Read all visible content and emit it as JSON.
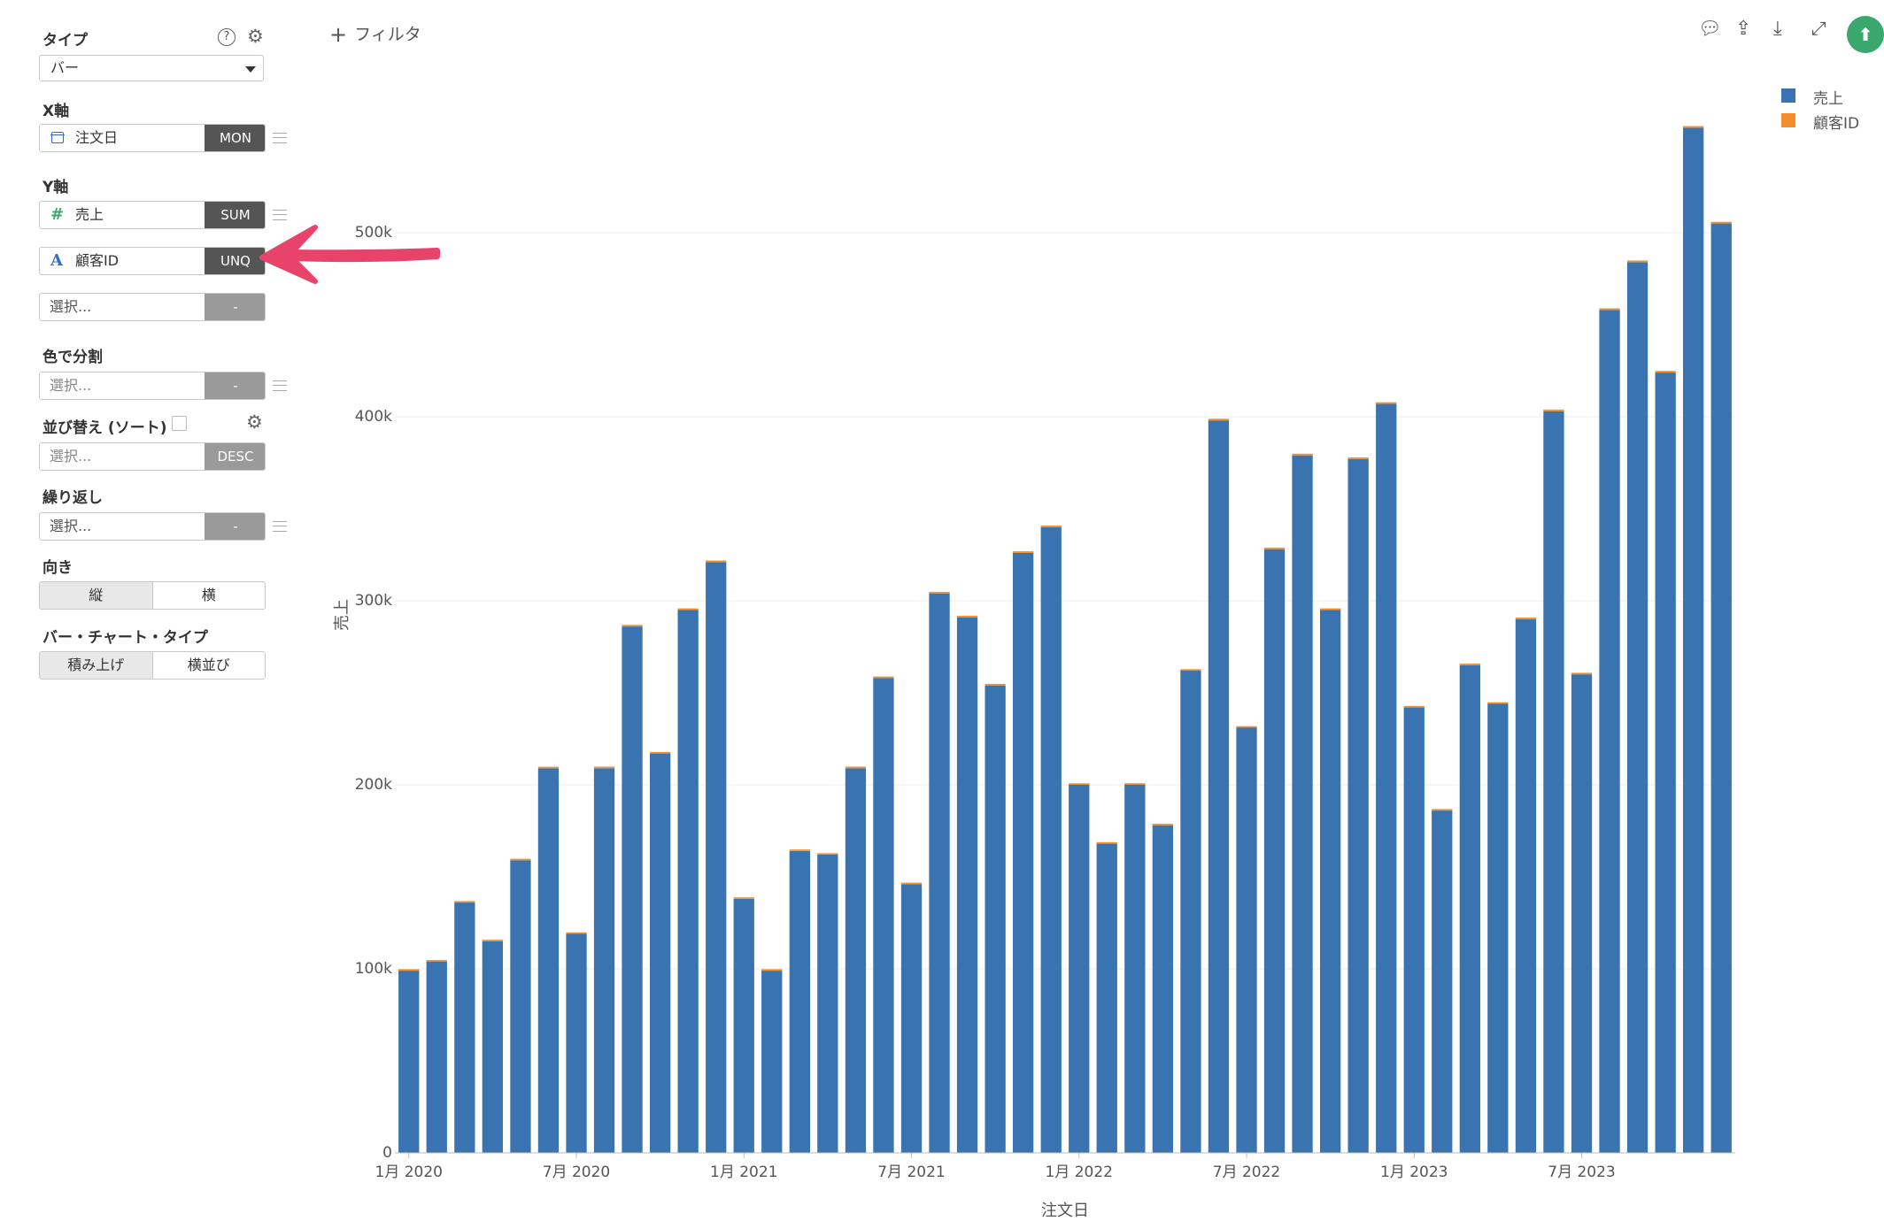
{
  "sidebar": {
    "type": {
      "label": "タイプ",
      "value": "バー"
    },
    "x_axis": {
      "label": "X軸",
      "field": "注文日",
      "agg": "MON"
    },
    "y_axis": {
      "label": "Y軸",
      "fields": [
        {
          "name": "売上",
          "agg": "SUM",
          "icon": "#"
        },
        {
          "name": "顧客ID",
          "agg": "UNQ",
          "icon": "A"
        }
      ],
      "placeholder": "選択...",
      "placeholder_agg": "-"
    },
    "color": {
      "label": "色で分割",
      "placeholder": "選択...",
      "agg": "-"
    },
    "sort": {
      "label": "並び替え (ソート)",
      "placeholder": "選択...",
      "agg": "DESC"
    },
    "repeat": {
      "label": "繰り返し",
      "placeholder": "選択...",
      "agg": "-"
    },
    "orientation": {
      "label": "向き",
      "options": [
        "縦",
        "横"
      ],
      "selected": 0
    },
    "bar_type": {
      "label": "バー・チャート・タイプ",
      "options": [
        "積み上げ",
        "横並び"
      ],
      "selected": 0
    }
  },
  "toolbar": {
    "filter_label": "フィルタ"
  },
  "colors": {
    "sales": "#3a74b0",
    "customer": "#f28e2b",
    "accent": "#e8446b",
    "pin": "#3aa76d"
  },
  "chart_data": {
    "type": "bar",
    "stacked": true,
    "xlabel": "注文日",
    "ylabel": "売上",
    "ylim": [
      0,
      560000
    ],
    "yticks": [
      {
        "value": 0,
        "label": "0"
      },
      {
        "value": 100000,
        "label": "100k"
      },
      {
        "value": 200000,
        "label": "200k"
      },
      {
        "value": 300000,
        "label": "300k"
      },
      {
        "value": 400000,
        "label": "400k"
      },
      {
        "value": 500000,
        "label": "500k"
      }
    ],
    "xticks": [
      {
        "index": 0,
        "label": "1月 2020"
      },
      {
        "index": 6,
        "label": "7月 2020"
      },
      {
        "index": 12,
        "label": "1月 2021"
      },
      {
        "index": 18,
        "label": "7月 2021"
      },
      {
        "index": 24,
        "label": "1月 2022"
      },
      {
        "index": 30,
        "label": "7月 2022"
      },
      {
        "index": 36,
        "label": "1月 2023"
      },
      {
        "index": 42,
        "label": "7月 2023"
      }
    ],
    "categories": [
      "2020-01",
      "2020-02",
      "2020-03",
      "2020-04",
      "2020-05",
      "2020-06",
      "2020-07",
      "2020-08",
      "2020-09",
      "2020-10",
      "2020-11",
      "2020-12",
      "2021-01",
      "2021-02",
      "2021-03",
      "2021-04",
      "2021-05",
      "2021-06",
      "2021-07",
      "2021-08",
      "2021-09",
      "2021-10",
      "2021-11",
      "2021-12",
      "2022-01",
      "2022-02",
      "2022-03",
      "2022-04",
      "2022-05",
      "2022-06",
      "2022-07",
      "2022-08",
      "2022-09",
      "2022-10",
      "2022-11",
      "2022-12",
      "2023-01",
      "2023-02",
      "2023-03",
      "2023-04",
      "2023-05",
      "2023-06",
      "2023-07",
      "2023-08",
      "2023-09",
      "2023-10",
      "2023-11",
      "2023-12"
    ],
    "series": [
      {
        "name": "売上",
        "values": [
          99000,
          104000,
          136000,
          115000,
          159000,
          209000,
          119000,
          209000,
          286000,
          217000,
          295000,
          321000,
          138000,
          99000,
          164000,
          162000,
          209000,
          258000,
          146000,
          304000,
          291000,
          254000,
          326000,
          340000,
          200000,
          168000,
          200000,
          178000,
          262000,
          398000,
          231000,
          328000,
          379000,
          295000,
          377000,
          407000,
          242000,
          186000,
          265000,
          244000,
          290000,
          403000,
          260000,
          458000,
          484000,
          424000,
          557000,
          505000
        ]
      },
      {
        "name": "顧客ID",
        "values": [
          80,
          85,
          90,
          88,
          100,
          110,
          95,
          112,
          130,
          120,
          135,
          140,
          105,
          90,
          115,
          118,
          128,
          140,
          110,
          145,
          142,
          135,
          150,
          155,
          120,
          110,
          122,
          115,
          138,
          165,
          130,
          150,
          160,
          140,
          158,
          168,
          130,
          115,
          140,
          135,
          150,
          170,
          140,
          180,
          185,
          175,
          200,
          190
        ]
      }
    ],
    "legend": "top-right",
    "grid": true
  }
}
